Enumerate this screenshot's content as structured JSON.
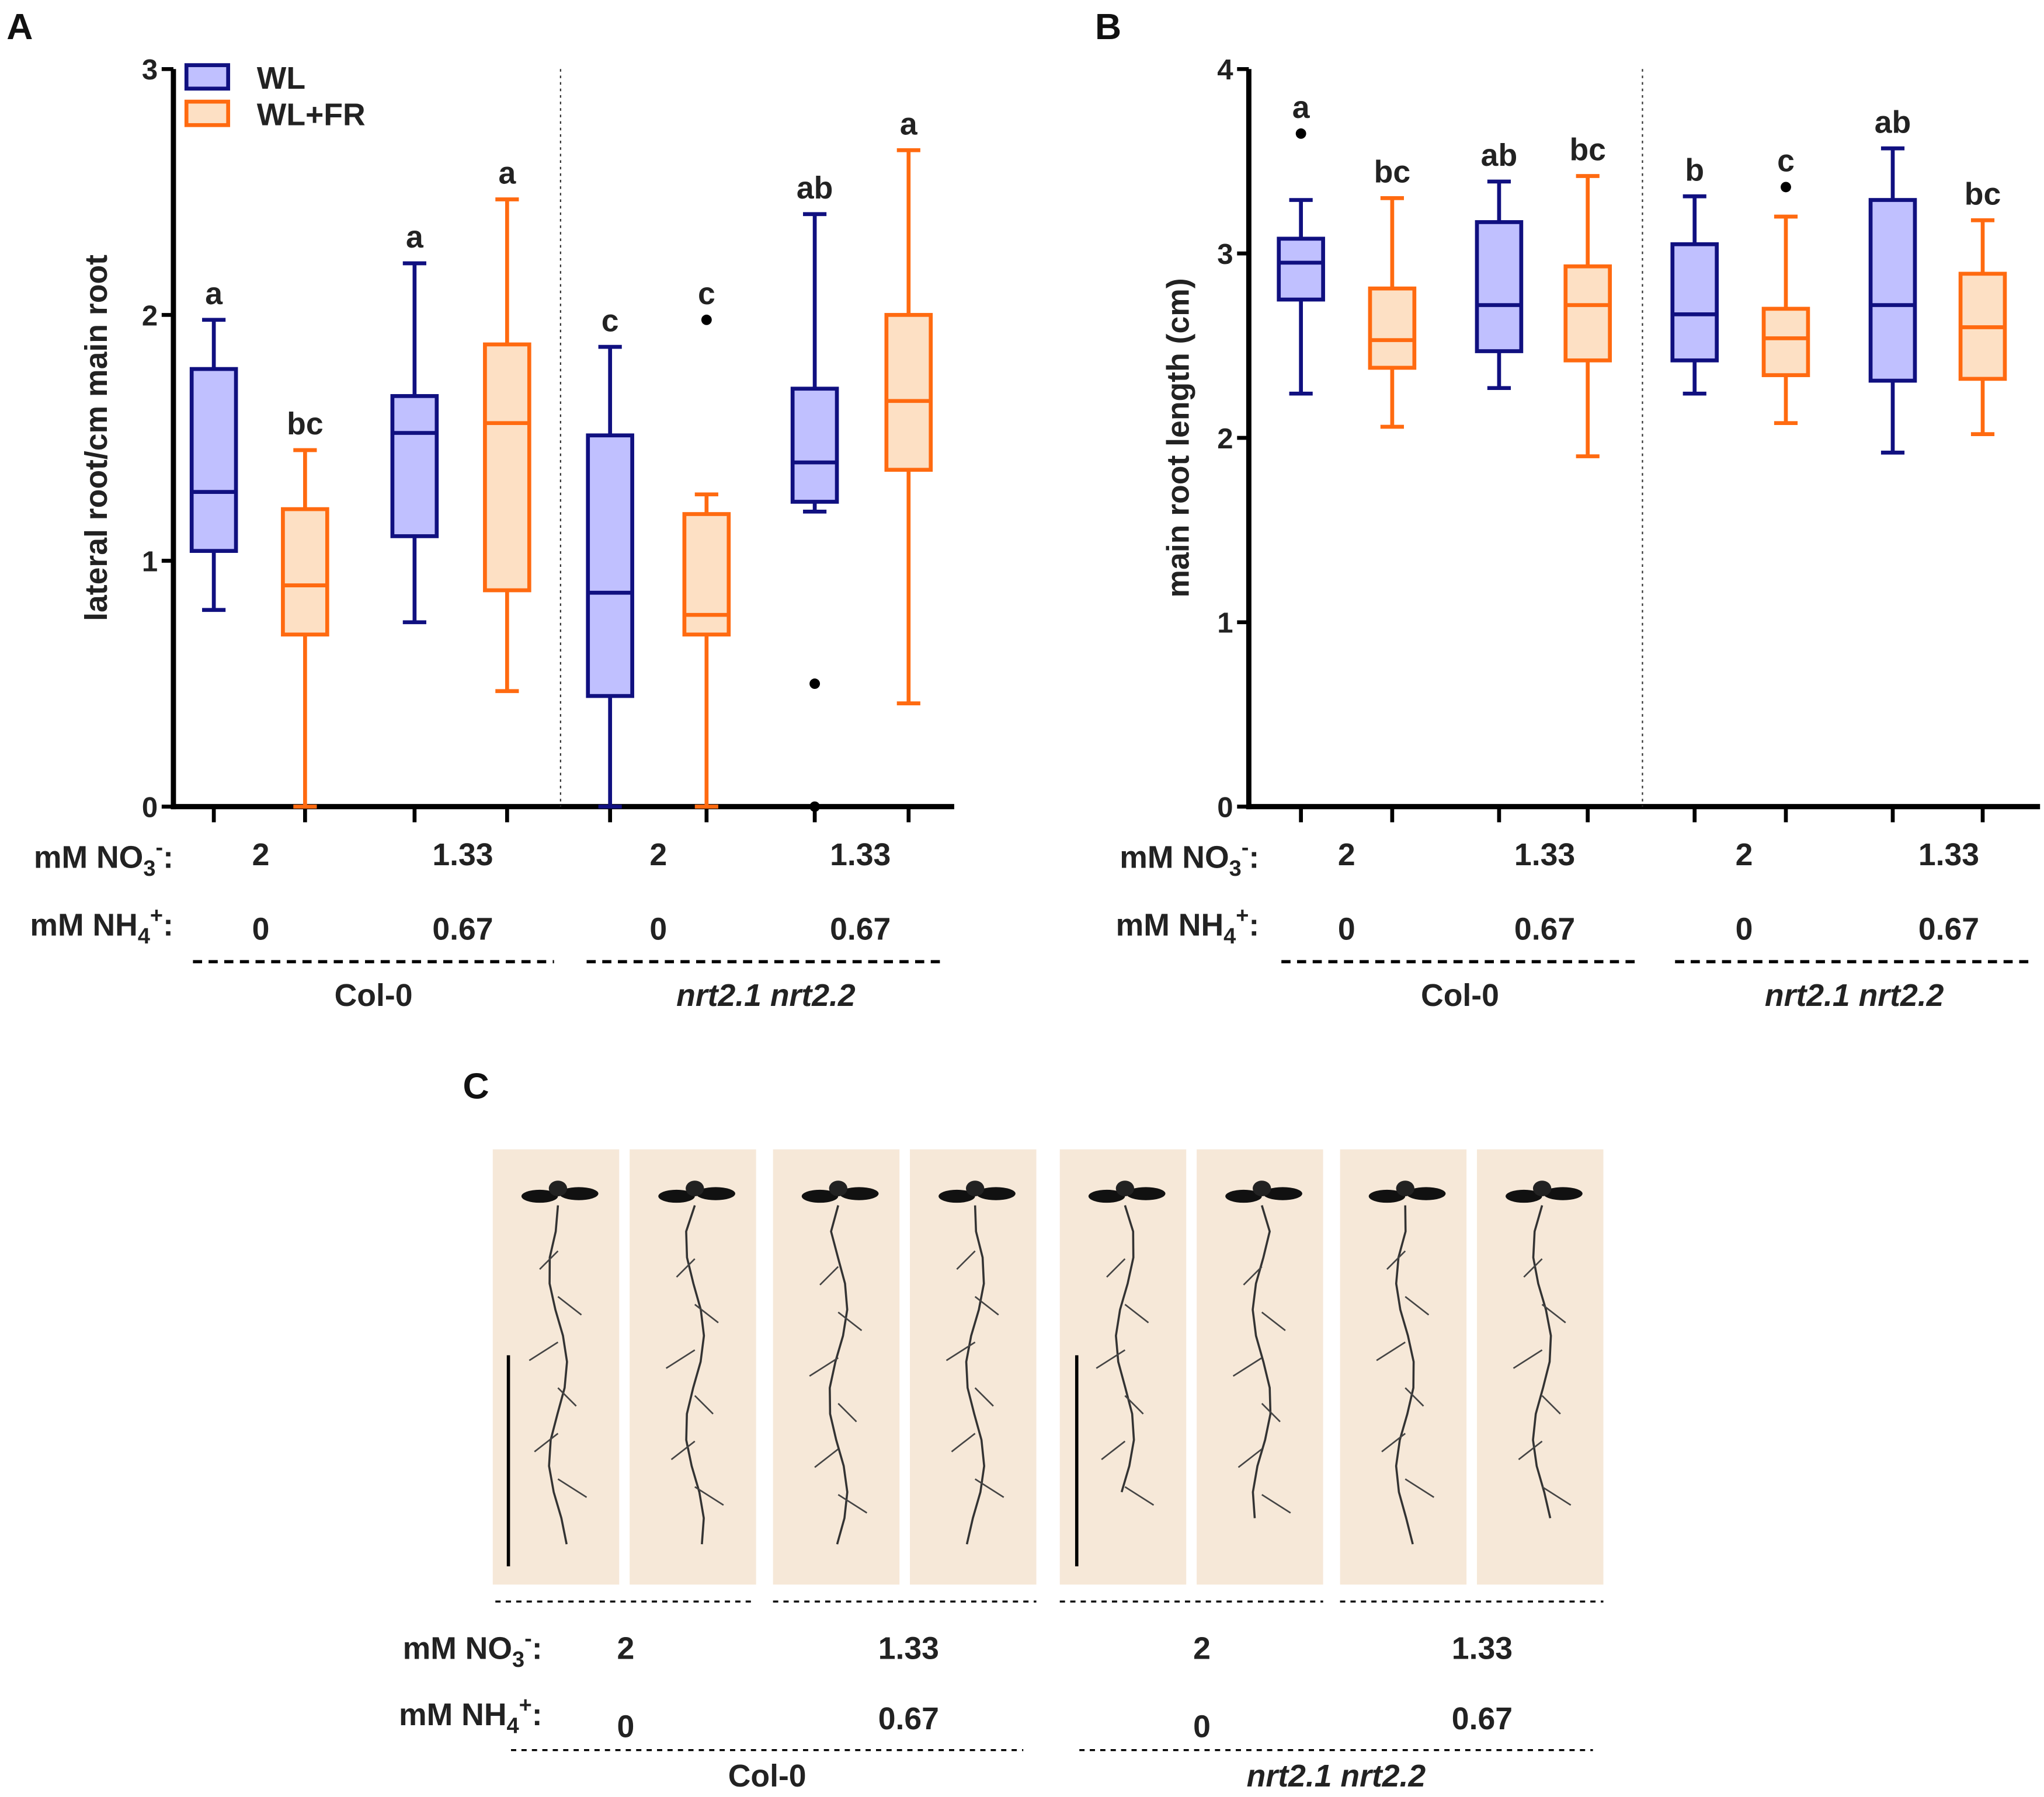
{
  "panels": {
    "a": "A",
    "b": "B",
    "c": "C"
  },
  "legend": [
    {
      "label": "WL",
      "fill": "#c0c0ff",
      "stroke": "#101080"
    },
    {
      "label": "WL+FR",
      "fill": "#fde0c4",
      "stroke": "#ff6a10"
    }
  ],
  "conditions": {
    "no3_label": {
      "base": "mM NO",
      "sub": "3",
      "sup": "-",
      "end": ":"
    },
    "nh4_label": {
      "base": "mM NH",
      "sub": "4",
      "sup": "+",
      "end": ":"
    },
    "no3_values": [
      "2",
      "1.33",
      "2",
      "1.33"
    ],
    "nh4_values": [
      "0",
      "0.67",
      "0",
      "0.67"
    ],
    "genotypes": [
      "Col-0",
      "nrt2.1 nrt2.2"
    ]
  },
  "chart_data": [
    {
      "type": "box",
      "panel": "A",
      "ylabel": "lateral root/cm main root",
      "ylim": [
        0,
        3
      ],
      "yticks": [
        "0",
        "1",
        "2",
        "3"
      ],
      "boxes": [
        {
          "series": "WL",
          "min": 0.8,
          "q1": 1.04,
          "median": 1.28,
          "q3": 1.78,
          "max": 1.98,
          "outliers": [],
          "letter": "a"
        },
        {
          "series": "WL+FR",
          "min": 0.0,
          "q1": 0.7,
          "median": 0.9,
          "q3": 1.21,
          "max": 1.45,
          "outliers": [],
          "letter": "bc"
        },
        {
          "series": "WL",
          "min": 0.75,
          "q1": 1.1,
          "median": 1.52,
          "q3": 1.67,
          "max": 2.21,
          "outliers": [],
          "letter": "a"
        },
        {
          "series": "WL+FR",
          "min": 0.47,
          "q1": 0.88,
          "median": 1.56,
          "q3": 1.88,
          "max": 2.47,
          "outliers": [],
          "letter": "a"
        },
        {
          "series": "WL",
          "min": 0.0,
          "q1": 0.45,
          "median": 0.87,
          "q3": 1.51,
          "max": 1.87,
          "outliers": [],
          "letter": "c"
        },
        {
          "series": "WL+FR",
          "min": 0.0,
          "q1": 0.7,
          "median": 0.78,
          "q3": 1.19,
          "max": 1.27,
          "outliers": [
            1.98
          ],
          "letter": "c"
        },
        {
          "series": "WL",
          "min": 1.2,
          "q1": 1.24,
          "median": 1.4,
          "q3": 1.7,
          "max": 2.41,
          "outliers": [
            0.5,
            0.0
          ],
          "letter": "ab"
        },
        {
          "series": "WL+FR",
          "min": 0.42,
          "q1": 1.37,
          "median": 1.65,
          "q3": 2.0,
          "max": 2.67,
          "outliers": [],
          "letter": "a"
        }
      ]
    },
    {
      "type": "box",
      "panel": "B",
      "ylabel": "main root length (cm)",
      "ylim": [
        0,
        4
      ],
      "yticks": [
        "0",
        "1",
        "2",
        "3",
        "4"
      ],
      "boxes": [
        {
          "series": "WL",
          "min": 2.24,
          "q1": 2.75,
          "median": 2.95,
          "q3": 3.08,
          "max": 3.29,
          "outliers": [
            3.65
          ],
          "letter": "a"
        },
        {
          "series": "WL+FR",
          "min": 2.06,
          "q1": 2.38,
          "median": 2.53,
          "q3": 2.81,
          "max": 3.3,
          "outliers": [],
          "letter": "bc"
        },
        {
          "series": "WL",
          "min": 2.27,
          "q1": 2.47,
          "median": 2.72,
          "q3": 3.17,
          "max": 3.39,
          "outliers": [],
          "letter": "ab"
        },
        {
          "series": "WL+FR",
          "min": 1.9,
          "q1": 2.42,
          "median": 2.72,
          "q3": 2.93,
          "max": 3.42,
          "outliers": [],
          "letter": "bc"
        },
        {
          "series": "WL",
          "min": 2.24,
          "q1": 2.42,
          "median": 2.67,
          "q3": 3.05,
          "max": 3.31,
          "outliers": [],
          "letter": "b"
        },
        {
          "series": "WL+FR",
          "min": 2.08,
          "q1": 2.34,
          "median": 2.54,
          "q3": 2.7,
          "max": 3.2,
          "outliers": [
            3.36
          ],
          "letter": "c"
        },
        {
          "series": "WL",
          "min": 1.92,
          "q1": 2.31,
          "median": 2.72,
          "q3": 3.29,
          "max": 3.57,
          "outliers": [],
          "letter": "ab"
        },
        {
          "series": "WL+FR",
          "min": 2.02,
          "q1": 2.32,
          "median": 2.6,
          "q3": 2.89,
          "max": 3.18,
          "outliers": [],
          "letter": "bc"
        }
      ]
    }
  ],
  "colors": {
    "wl_stroke": "#101080",
    "wl_fill": "#c0c0ff",
    "fr_stroke": "#ff6a10",
    "fr_fill": "#fde0c4",
    "photo_bg": "#f6e8d8"
  }
}
